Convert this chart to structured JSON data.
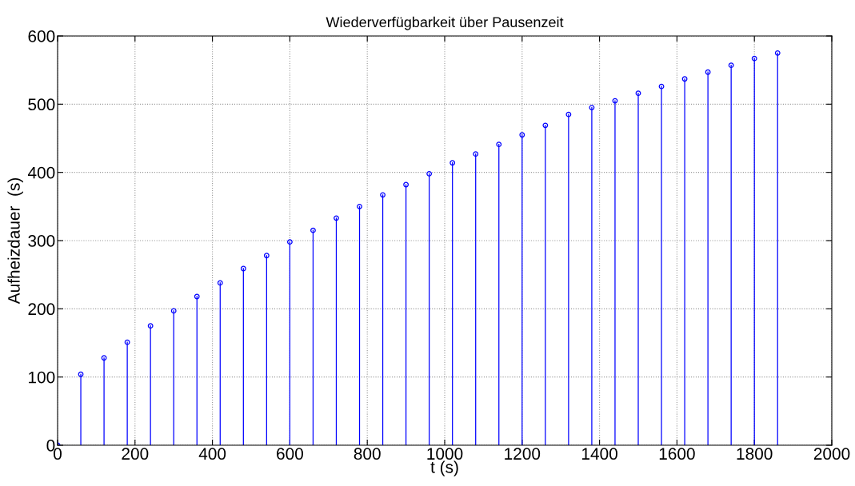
{
  "chart_data": {
    "type": "lollipop",
    "title": "Wiederverfügbarkeit über Pausenzeit",
    "xlabel": "t (s)",
    "ylabel": "Aufheizdauer  (s)",
    "x": [
      0,
      60,
      120,
      180,
      240,
      300,
      360,
      420,
      480,
      540,
      600,
      660,
      720,
      780,
      840,
      900,
      960,
      1020,
      1080,
      1140,
      1200,
      1260,
      1320,
      1380,
      1440,
      1500,
      1560,
      1620,
      1680,
      1740,
      1800,
      1860
    ],
    "series": [
      {
        "color": "#0000ff",
        "values": [
          0,
          104,
          128,
          151,
          175,
          197,
          218,
          238,
          259,
          278,
          298,
          315,
          333,
          350,
          367,
          382,
          398,
          414,
          427,
          441,
          455,
          469,
          485,
          495,
          505,
          516,
          526,
          537,
          547,
          557,
          567,
          575
        ]
      }
    ],
    "xlim": [
      0,
      2000
    ],
    "xticks": [
      0,
      200,
      400,
      600,
      800,
      1000,
      1200,
      1400,
      1600,
      1800,
      2000
    ],
    "ylim": [
      0,
      600
    ],
    "yticks": [
      0,
      100,
      200,
      300,
      400,
      500,
      600
    ],
    "grid": true,
    "marker": "circle",
    "line_style": "solid"
  }
}
